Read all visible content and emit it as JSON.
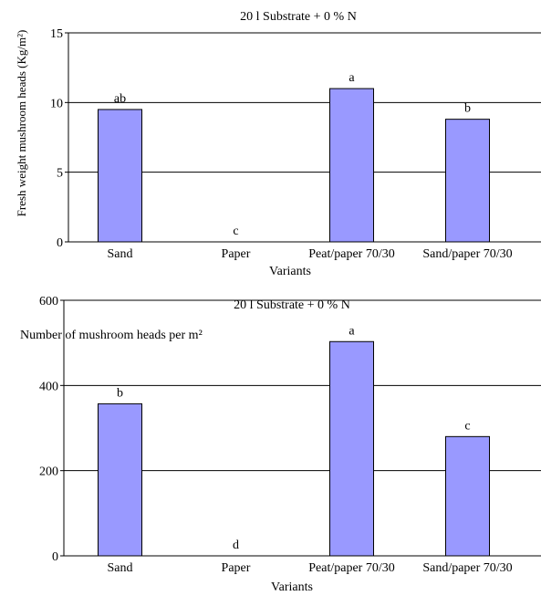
{
  "chart_data": [
    {
      "type": "bar",
      "title": "20 l Substrate + 0 % N",
      "xlabel": "Variants",
      "ylabel": "Fresh weight mushroom heads (Kg/m²)",
      "categories": [
        "Sand",
        "Paper",
        "Peat/paper 70/30",
        "Sand/paper 70/30"
      ],
      "values": [
        9.5,
        0,
        11,
        8.8
      ],
      "significance_labels": [
        "ab",
        "c",
        "a",
        "b"
      ],
      "ylim": [
        0,
        15
      ],
      "yticks": [
        "0",
        "5",
        "10",
        "15"
      ],
      "grid": true,
      "bar_color": "#9999ff"
    },
    {
      "type": "bar",
      "title": "20 l Substrate + 0 % N",
      "xlabel": "Variants",
      "annotation": "Number of mushroom heads per m²",
      "categories": [
        "Sand",
        "Paper",
        "Peat/paper 70/30",
        "Sand/paper 70/30"
      ],
      "values": [
        357,
        0,
        503,
        280
      ],
      "significance_labels": [
        "b",
        "d",
        "a",
        "c"
      ],
      "ylim": [
        0,
        600
      ],
      "yticks": [
        "0",
        "200",
        "400",
        "600"
      ],
      "grid": true,
      "bar_color": "#9999ff"
    }
  ]
}
